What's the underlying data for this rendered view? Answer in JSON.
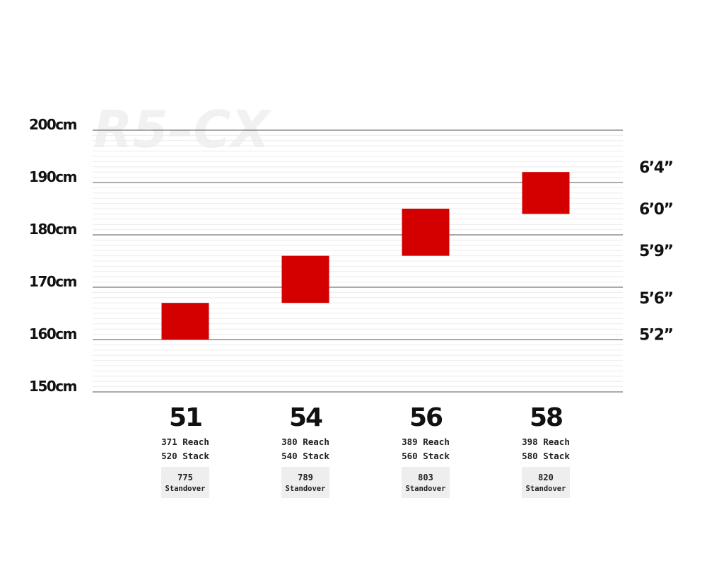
{
  "watermark": "R5–CX",
  "chart_data": {
    "type": "bar",
    "ylim": [
      150,
      200
    ],
    "y_ticks": [
      "150cm",
      "160cm",
      "170cm",
      "180cm",
      "190cm",
      "200cm"
    ],
    "y_tick_values": [
      150,
      160,
      170,
      180,
      190,
      200
    ],
    "right_ticks": [
      {
        "label": "6’4”",
        "value": 193
      },
      {
        "label": "6’0”",
        "value": 185
      },
      {
        "label": "5’9”",
        "value": 177
      },
      {
        "label": "5’6”",
        "value": 168
      },
      {
        "label": "5’2”",
        "value": 161
      }
    ],
    "categories": [
      "51",
      "54",
      "56",
      "58"
    ],
    "ranges": [
      {
        "size": "51",
        "low": 160,
        "high": 167
      },
      {
        "size": "54",
        "low": 167,
        "high": 176
      },
      {
        "size": "56",
        "low": 176,
        "high": 185
      },
      {
        "size": "58",
        "low": 184,
        "high": 192
      }
    ],
    "bar_color": "#d40000",
    "specs": [
      {
        "reach": "371 Reach",
        "stack": "520 Stack",
        "standover": "775",
        "standover_label": "Standover"
      },
      {
        "reach": "380 Reach",
        "stack": "540 Stack",
        "standover": "789",
        "standover_label": "Standover"
      },
      {
        "reach": "389 Reach",
        "stack": "560 Stack",
        "standover": "803",
        "standover_label": "Standover"
      },
      {
        "reach": "398 Reach",
        "stack": "580 Stack",
        "standover": "820",
        "standover_label": "Standover"
      }
    ]
  }
}
